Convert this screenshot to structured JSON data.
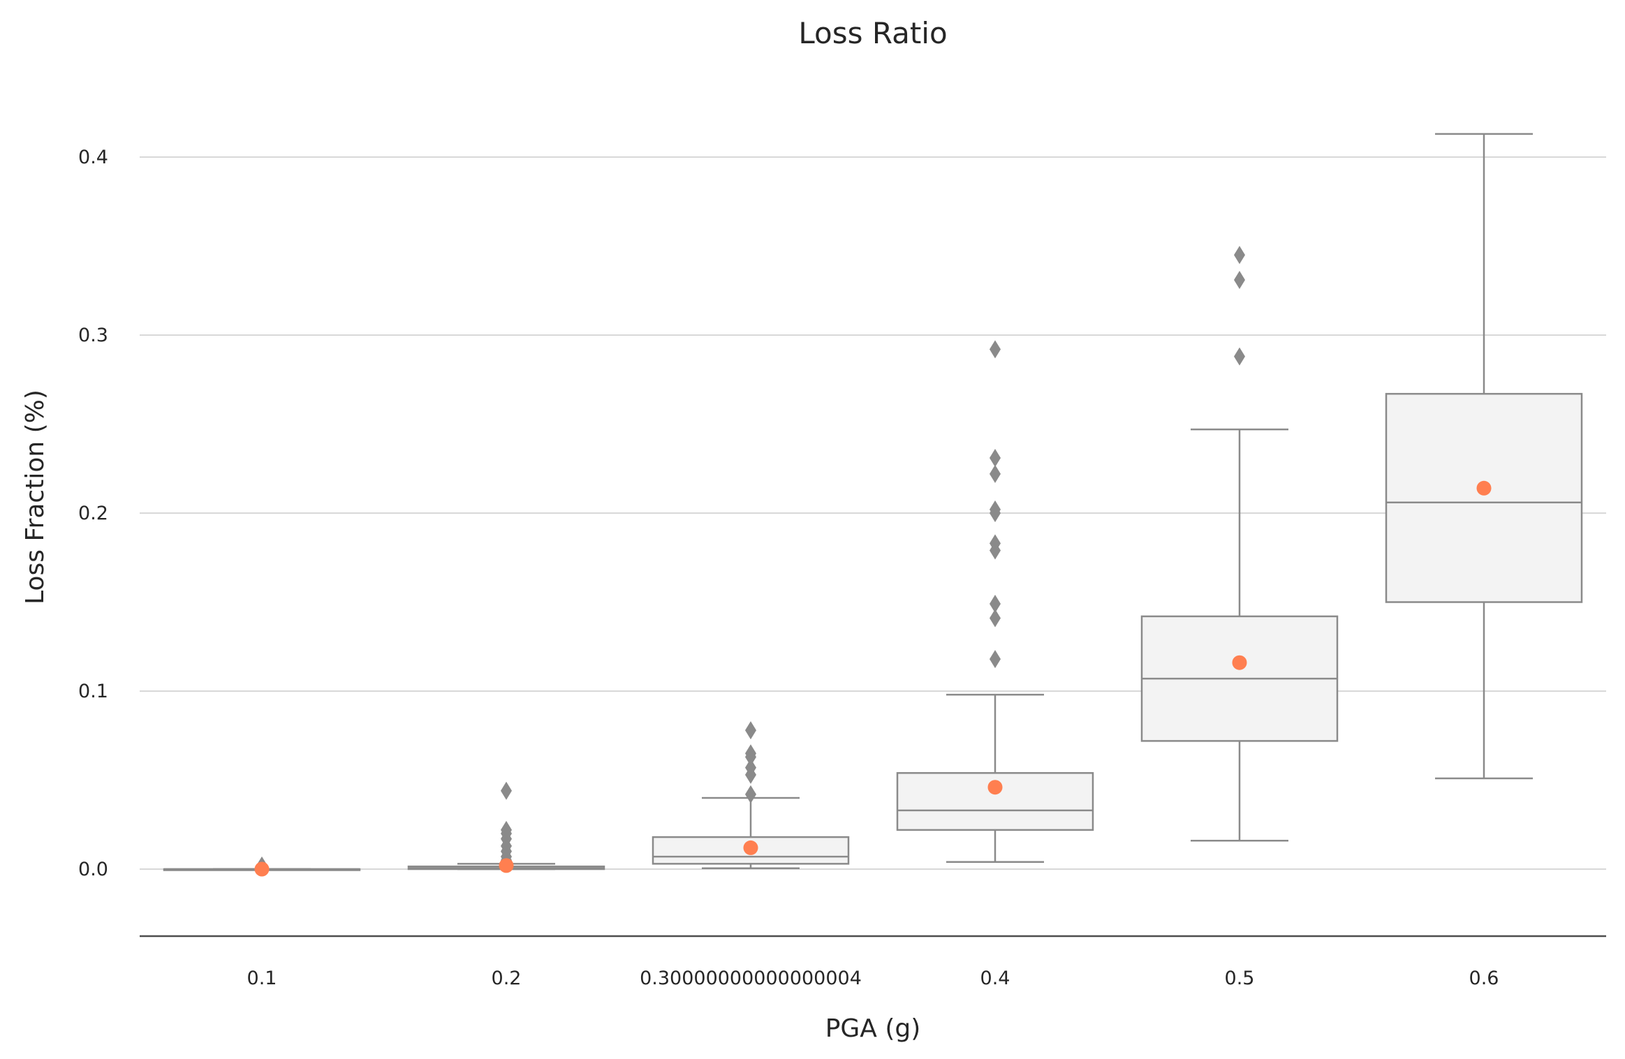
{
  "chart_data": {
    "type": "box",
    "title": "Loss Ratio",
    "xlabel": "PGA (g)",
    "ylabel": "Loss Fraction (%)",
    "categories": [
      "0.1",
      "0.2",
      "0.30000000000000004",
      "0.4",
      "0.5",
      "0.6"
    ],
    "ylim": [
      -0.038,
      0.43
    ],
    "yticks": [
      0.0,
      0.1,
      0.2,
      0.3,
      0.4
    ],
    "ytick_labels": [
      "0.0",
      "0.1",
      "0.2",
      "0.3",
      "0.4"
    ],
    "grid": "y",
    "colors": {
      "box_fill": "#f3f3f3",
      "box_edge": "#8a8a8a",
      "mean_marker": "#ff7f50",
      "flier": "#8a8a8a"
    },
    "boxes": [
      {
        "category": "0.1",
        "whisker_low": 0.0,
        "q1": 0.0,
        "median": 0.0,
        "q3": 0.0,
        "whisker_high": 0.0,
        "mean": 0.0,
        "fliers": [
          0.002
        ]
      },
      {
        "category": "0.2",
        "whisker_low": 0.0,
        "q1": 0.0,
        "median": 0.0005,
        "q3": 0.0015,
        "whisker_high": 0.003,
        "mean": 0.002,
        "fliers": [
          0.005,
          0.007,
          0.01,
          0.013,
          0.017,
          0.02,
          0.022,
          0.044
        ]
      },
      {
        "category": "0.30000000000000004",
        "whisker_low": 0.0005,
        "q1": 0.003,
        "median": 0.007,
        "q3": 0.018,
        "whisker_high": 0.04,
        "mean": 0.012,
        "fliers": [
          0.042,
          0.053,
          0.057,
          0.063,
          0.065,
          0.078
        ]
      },
      {
        "category": "0.4",
        "whisker_low": 0.004,
        "q1": 0.022,
        "median": 0.033,
        "q3": 0.054,
        "whisker_high": 0.098,
        "mean": 0.046,
        "fliers": [
          0.118,
          0.141,
          0.149,
          0.179,
          0.183,
          0.2,
          0.202,
          0.222,
          0.231,
          0.292
        ]
      },
      {
        "category": "0.5",
        "whisker_low": 0.016,
        "q1": 0.072,
        "median": 0.107,
        "q3": 0.142,
        "whisker_high": 0.247,
        "mean": 0.116,
        "fliers": [
          0.288,
          0.331,
          0.345
        ]
      },
      {
        "category": "0.6",
        "whisker_low": 0.051,
        "q1": 0.15,
        "median": 0.206,
        "q3": 0.267,
        "whisker_high": 0.413,
        "mean": 0.214,
        "fliers": []
      }
    ]
  }
}
